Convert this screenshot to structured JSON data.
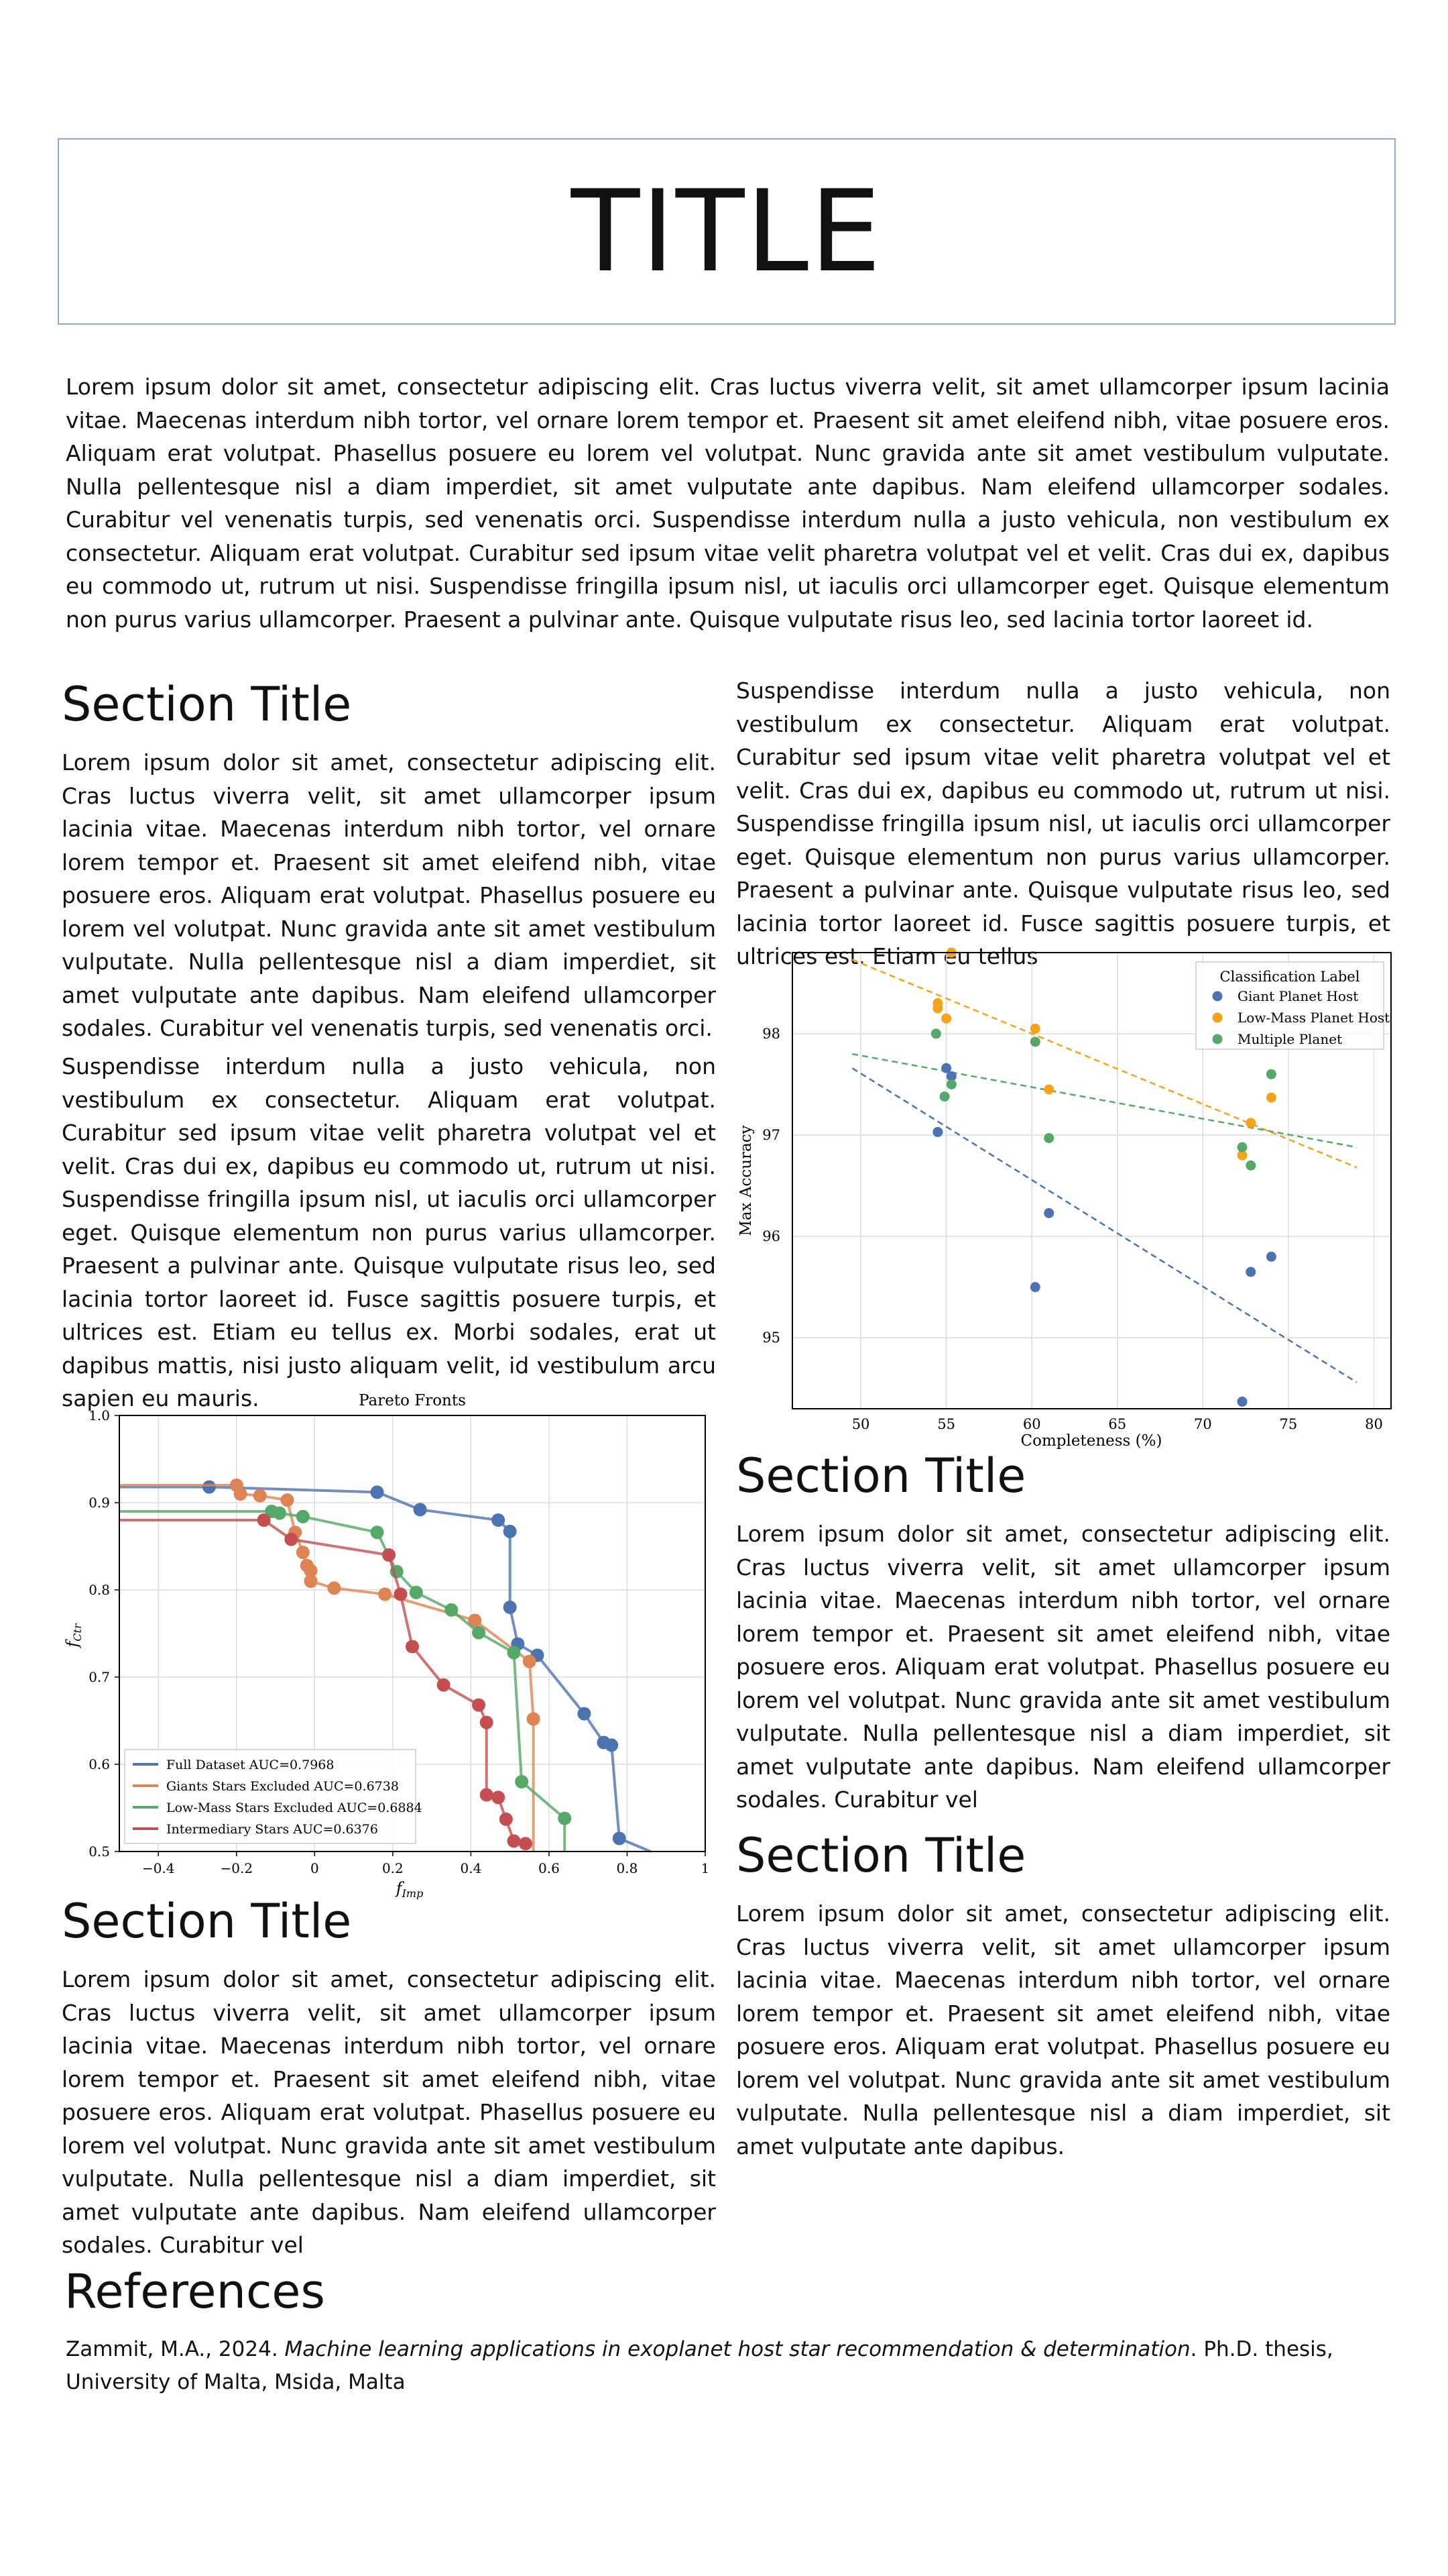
{
  "title": "TITLE",
  "intro": "Lorem ipsum dolor sit amet, consectetur adipiscing elit. Cras luctus viverra velit, sit amet ullamcorper ipsum lacinia vitae. Maecenas interdum nibh tortor, vel ornare lorem tempor et. Praesent sit amet eleifend nibh, vitae posuere eros. Aliquam erat volutpat. Phasellus posuere eu lorem vel volutpat. Nunc gravida ante sit amet vestibulum vulputate. Nulla pellentesque nisl a diam imperdiet, sit amet vulputate ante dapibus. Nam eleifend ullamcorper sodales. Curabitur vel venenatis turpis, sed venenatis orci. Suspendisse interdum nulla a justo vehicula, non vestibulum ex consectetur. Aliquam erat volutpat. Curabitur sed ipsum vitae velit pharetra volutpat vel et velit. Cras dui ex, dapibus eu commodo ut, rutrum ut nisi. Suspendisse fringilla ipsum nisl, ut iaculis orci ullamcorper eget. Quisque elementum non purus varius ullamcorper. Praesent a pulvinar ante. Quisque vulputate risus leo, sed lacinia tortor laoreet id.",
  "left_col": {
    "section1_title": "Section Title",
    "section1_p1": "Lorem ipsum dolor sit amet, consectetur adipiscing elit. Cras luctus viverra velit, sit amet ullamcorper ipsum lacinia vitae. Maecenas interdum nibh tortor, vel ornare lorem tempor et. Praesent sit amet eleifend nibh, vitae posuere eros. Aliquam erat volutpat. Phasellus posuere eu lorem vel volutpat. Nunc gravida ante sit amet vestibulum vulputate. Nulla pellentesque nisl a diam imperdiet, sit amet vulputate ante dapibus. Nam eleifend ullamcorper sodales. Curabitur vel venenatis turpis, sed venenatis orci.",
    "section1_p2": "Suspendisse interdum nulla a justo vehicula, non vestibulum ex consectetur. Aliquam erat volutpat. Curabitur sed ipsum vitae velit pharetra volutpat vel et velit. Cras dui ex, dapibus eu commodo ut, rutrum ut nisi. Suspendisse fringilla ipsum nisl, ut iaculis orci ullamcorper eget. Quisque elementum non purus varius ullamcorper. Praesent a pulvinar ante. Quisque vulputate risus leo, sed lacinia tortor laoreet id. Fusce sagittis posuere turpis, et ultrices est. Etiam eu tellus ex. Morbi sodales, erat ut dapibus mattis, nisi justo aliquam velit, id vestibulum arcu sapien eu mauris.",
    "section3_title": "Section Title",
    "section3_p1": "Lorem ipsum dolor sit amet, consectetur adipiscing elit. Cras luctus viverra velit, sit amet ullamcorper ipsum lacinia vitae. Maecenas interdum nibh tortor, vel ornare lorem tempor et. Praesent sit amet eleifend nibh, vitae posuere eros. Aliquam erat volutpat. Phasellus posuere eu lorem vel volutpat. Nunc gravida ante sit amet vestibulum vulputate. Nulla pellentesque nisl a diam imperdiet, sit amet vulputate ante dapibus. Nam eleifend ullamcorper sodales. Curabitur vel"
  },
  "right_col": {
    "top_p": "Suspendisse interdum nulla a justo vehicula, non vestibulum ex consectetur. Aliquam erat volutpat. Curabitur sed ipsum vitae velit pharetra volutpat vel et velit. Cras dui ex, dapibus eu commodo ut, rutrum ut nisi. Suspendisse fringilla ipsum nisl, ut iaculis orci ullamcorper eget. Quisque elementum non purus varius ullamcorper. Praesent a pulvinar ante. Quisque vulputate risus leo, sed lacinia tortor laoreet id. Fusce sagittis posuere turpis, et ultrices est. Etiam eu tellus",
    "section2_title": "Section Title",
    "section2_p1": "Lorem ipsum dolor sit amet, consectetur adipiscing elit. Cras luctus viverra velit, sit amet ullamcorper ipsum lacinia vitae. Maecenas interdum nibh tortor, vel ornare lorem tempor et. Praesent sit amet eleifend nibh, vitae posuere eros. Aliquam erat volutpat. Phasellus posuere eu lorem vel volutpat. Nunc gravida ante sit amet vestibulum vulputate. Nulla pellentesque nisl a diam imperdiet, sit amet vulputate ante dapibus. Nam eleifend ullamcorper sodales. Curabitur vel",
    "section4_title": "Section Title",
    "section4_p1": "Lorem ipsum dolor sit amet, consectetur adipiscing elit. Cras luctus viverra velit, sit amet ullamcorper ipsum lacinia vitae. Maecenas interdum nibh tortor, vel ornare lorem tempor et. Praesent sit amet eleifend nibh, vitae posuere eros. Aliquam erat volutpat. Phasellus posuere eu lorem vel volutpat. Nunc gravida ante sit amet vestibulum vulputate. Nulla pellentesque nisl a diam imperdiet, sit amet vulputate ante dapibus."
  },
  "references": {
    "title": "References",
    "entry_prefix": "Zammit, M.A., 2024. ",
    "entry_title": "Machine learning applications in exoplanet host star recommendation & determination",
    "entry_suffix": ". Ph.D. thesis, University of Malta, Msida, Malta"
  },
  "chart_data": [
    {
      "type": "scatter",
      "title": "",
      "xlabel": "Completeness (%)",
      "ylabel": "Max Accuracy",
      "xlim": [
        46,
        81
      ],
      "ylim": [
        94.3,
        98.8
      ],
      "xticks": [
        50,
        55,
        60,
        65,
        70,
        75,
        80
      ],
      "yticks": [
        95,
        96,
        97,
        98
      ],
      "grid": true,
      "legend_position": "top-right",
      "legend_title": "Classification Label",
      "series": [
        {
          "name": "Giant Planet Host",
          "color": "#4c72b0",
          "points": [
            [
              54.5,
              97.03
            ],
            [
              55.0,
              97.66
            ],
            [
              55.3,
              97.58
            ],
            [
              60.2,
              95.5
            ],
            [
              61.0,
              96.23
            ],
            [
              72.3,
              94.37
            ],
            [
              72.8,
              95.65
            ],
            [
              74.0,
              95.8
            ]
          ],
          "trend": [
            [
              49.5,
              97.66
            ],
            [
              79.0,
              94.56
            ]
          ]
        },
        {
          "name": "Low-Mass Planet Host",
          "color": "#f5a31a",
          "points": [
            [
              54.5,
              98.3
            ],
            [
              54.5,
              98.25
            ],
            [
              55.0,
              98.15
            ],
            [
              55.3,
              98.8
            ],
            [
              60.2,
              98.05
            ],
            [
              61.0,
              97.45
            ],
            [
              72.3,
              96.8
            ],
            [
              72.8,
              97.12
            ],
            [
              74.0,
              97.37
            ]
          ],
          "trend": [
            [
              49.5,
              98.73
            ],
            [
              79.0,
              96.68
            ]
          ]
        },
        {
          "name": "Multiple Planet",
          "color": "#55a868",
          "points": [
            [
              54.4,
              98.0
            ],
            [
              54.9,
              97.38
            ],
            [
              55.3,
              97.5
            ],
            [
              60.2,
              97.92
            ],
            [
              61.0,
              96.97
            ],
            [
              72.3,
              96.88
            ],
            [
              72.8,
              96.7
            ],
            [
              74.0,
              97.6
            ]
          ],
          "trend": [
            [
              49.5,
              97.8
            ],
            [
              79.0,
              96.88
            ]
          ]
        }
      ]
    },
    {
      "type": "line",
      "title": "Pareto Fronts",
      "xlabel": "f_Imp",
      "ylabel": "f_Ctr",
      "xlim": [
        -0.5,
        1.0
      ],
      "ylim": [
        0.5,
        1.0
      ],
      "xticks": [
        -0.4,
        -0.2,
        0.0,
        0.2,
        0.4,
        0.6,
        0.8,
        1.0
      ],
      "yticks": [
        0.5,
        0.6,
        0.7,
        0.8,
        0.9,
        1.0
      ],
      "grid": true,
      "legend_position": "bottom-left",
      "series": [
        {
          "name": "Full Dataset AUC=0.7968",
          "color": "#4c72b0",
          "points": [
            [
              -0.5,
              0.918
            ],
            [
              -0.27,
              0.918
            ],
            [
              0.16,
              0.912
            ],
            [
              0.27,
              0.892
            ],
            [
              0.47,
              0.88
            ],
            [
              0.5,
              0.867
            ],
            [
              0.5,
              0.78
            ],
            [
              0.52,
              0.738
            ],
            [
              0.57,
              0.725
            ],
            [
              0.69,
              0.658
            ],
            [
              0.74,
              0.625
            ],
            [
              0.76,
              0.622
            ],
            [
              0.78,
              0.515
            ],
            [
              0.86,
              0.5
            ]
          ]
        },
        {
          "name": "Giants Stars Excluded AUC=0.6738",
          "color": "#dd8452",
          "points": [
            [
              -0.5,
              0.92
            ],
            [
              -0.2,
              0.92
            ],
            [
              -0.19,
              0.91
            ],
            [
              -0.14,
              0.908
            ],
            [
              -0.07,
              0.903
            ],
            [
              -0.05,
              0.866
            ],
            [
              -0.03,
              0.843
            ],
            [
              -0.02,
              0.828
            ],
            [
              -0.01,
              0.822
            ],
            [
              -0.01,
              0.81
            ],
            [
              0.05,
              0.802
            ],
            [
              0.18,
              0.795
            ],
            [
              0.41,
              0.765
            ],
            [
              0.55,
              0.718
            ],
            [
              0.56,
              0.652
            ],
            [
              0.56,
              0.5
            ]
          ]
        },
        {
          "name": "Low-Mass Stars Excluded AUC=0.6884",
          "color": "#55a868",
          "points": [
            [
              -0.5,
              0.89
            ],
            [
              -0.11,
              0.89
            ],
            [
              -0.09,
              0.888
            ],
            [
              -0.03,
              0.884
            ],
            [
              0.16,
              0.866
            ],
            [
              0.21,
              0.821
            ],
            [
              0.26,
              0.797
            ],
            [
              0.35,
              0.777
            ],
            [
              0.42,
              0.751
            ],
            [
              0.51,
              0.728
            ],
            [
              0.53,
              0.58
            ],
            [
              0.64,
              0.538
            ],
            [
              0.64,
              0.5
            ]
          ]
        },
        {
          "name": "Intermediary Stars AUC=0.6376",
          "color": "#c44e52",
          "points": [
            [
              -0.5,
              0.88
            ],
            [
              -0.13,
              0.88
            ],
            [
              -0.06,
              0.858
            ],
            [
              0.19,
              0.84
            ],
            [
              0.22,
              0.795
            ],
            [
              0.25,
              0.735
            ],
            [
              0.33,
              0.691
            ],
            [
              0.42,
              0.668
            ],
            [
              0.44,
              0.648
            ],
            [
              0.44,
              0.565
            ],
            [
              0.47,
              0.562
            ],
            [
              0.49,
              0.537
            ],
            [
              0.51,
              0.512
            ],
            [
              0.54,
              0.509
            ]
          ]
        }
      ]
    }
  ]
}
